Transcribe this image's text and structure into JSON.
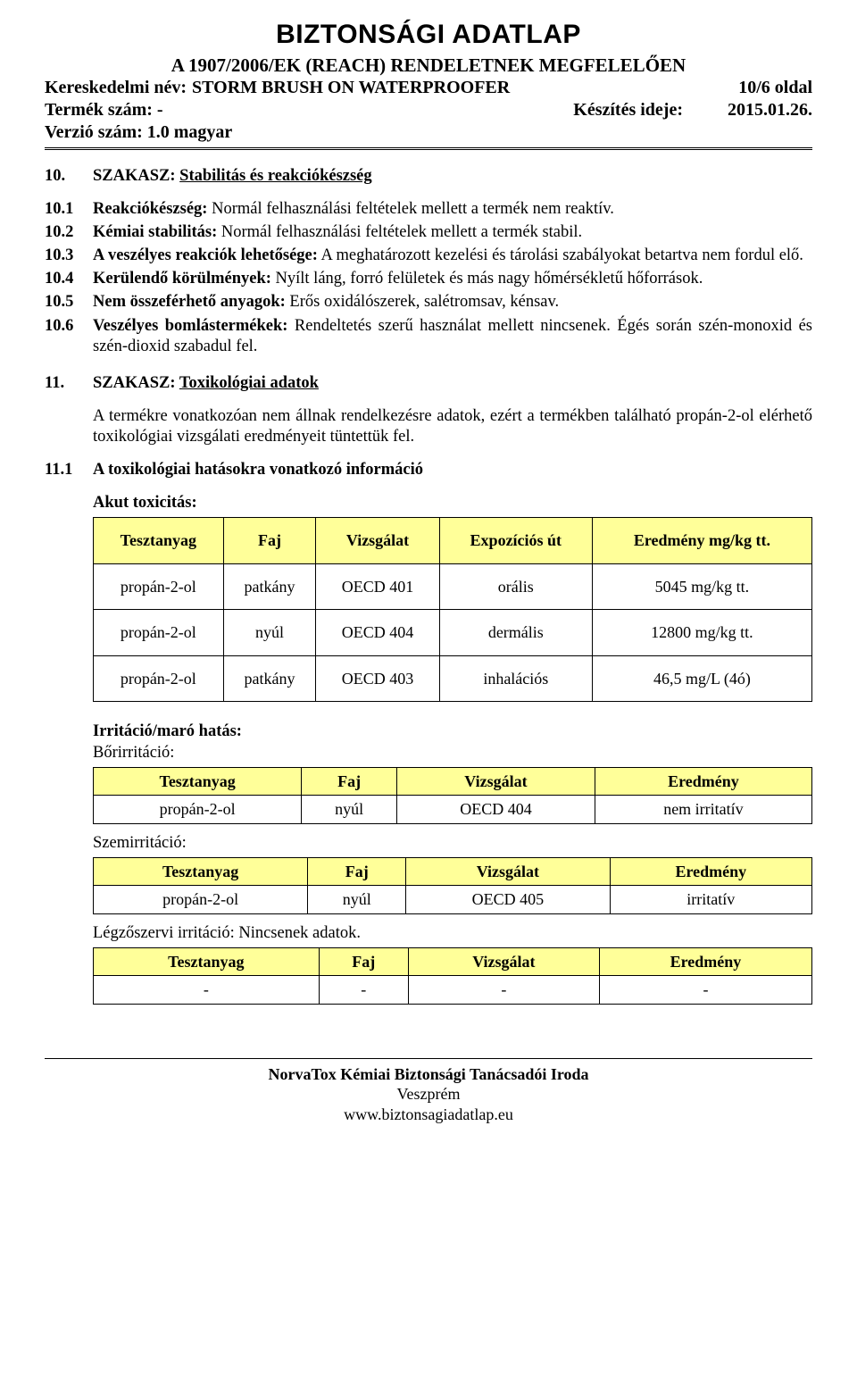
{
  "header": {
    "main_title": "BIZTONSÁGI ADATLAP",
    "subtitle": "A 1907/2006/EK (REACH) RENDELETNEK MEGFELELŐEN",
    "trade_label": "Kereskedelmi név:",
    "trade_value": "STORM BRUSH ON WATERPROOFER",
    "page_info": "10/6 oldal",
    "product_label": "Termék szám: -",
    "prep_label": "Készítés ideje:",
    "prep_value": "2015.01.26.",
    "version_label": "Verzió szám: 1.0 magyar"
  },
  "section10": {
    "num": "10.",
    "prefix": "SZAKASZ: ",
    "title": "Stabilitás és reakciókészség",
    "items": [
      {
        "n": "10.1",
        "label": "Reakciókészség:",
        "text": " Normál felhasználási feltételek mellett a termék nem reaktív."
      },
      {
        "n": "10.2",
        "label": "Kémiai stabilitás:",
        "text": " Normál felhasználási feltételek mellett a termék stabil."
      },
      {
        "n": "10.3",
        "label": "A veszélyes reakciók lehetősége:",
        "text": " A meghatározott kezelési és tárolási szabályokat betartva nem fordul elő."
      },
      {
        "n": "10.4",
        "label": "Kerülendő körülmények:",
        "text": " Nyílt láng, forró felületek és más nagy hőmérsékletű hőforrások."
      },
      {
        "n": "10.5",
        "label": "Nem összeférhető anyagok:",
        "text": " Erős oxidálószerek, salétromsav, kénsav."
      },
      {
        "n": "10.6",
        "label": "Veszélyes bomlástermékek:",
        "text": " Rendeltetés szerű használat mellett nincsenek. Égés során szén-monoxid és szén-dioxid szabadul fel."
      }
    ]
  },
  "section11": {
    "num": "11.",
    "prefix": "SZAKASZ: ",
    "title": "Toxikológiai adatok",
    "intro": "A termékre vonatkozóan nem állnak rendelkezésre adatok, ezért a termékben található propán-2-ol elérhető toxikológiai vizsgálati eredményeit tüntettük fel.",
    "sub11_1": {
      "n": "11.1",
      "text": "A toxikológiai hatásokra vonatkozó információ"
    },
    "acute_heading": "Akut toxicitás:",
    "acute_table": {
      "header_bg": "#ffff99",
      "columns": [
        "Tesztanyag",
        "Faj",
        "Vizsgálat",
        "Expozíciós út",
        "Eredmény mg/kg tt."
      ],
      "rows": [
        [
          "propán-2-ol",
          "patkány",
          "OECD 401",
          "orális",
          "5045 mg/kg tt."
        ],
        [
          "propán-2-ol",
          "nyúl",
          "OECD 404",
          "dermális",
          "12800 mg/kg tt."
        ],
        [
          "propán-2-ol",
          "patkány",
          "OECD 403",
          "inhalációs",
          "46,5 mg/L (4ó)"
        ]
      ]
    },
    "irr_heading": "Irritáció/maró hatás:",
    "skin_label": "Bőrirritáció:",
    "skin_table": {
      "header_bg": "#ffff99",
      "columns": [
        "Tesztanyag",
        "Faj",
        "Vizsgálat",
        "Eredmény"
      ],
      "rows": [
        [
          "propán-2-ol",
          "nyúl",
          "OECD 404",
          "nem irritatív"
        ]
      ]
    },
    "eye_label": "Szemirritáció:",
    "eye_table": {
      "header_bg": "#ffff99",
      "columns": [
        "Tesztanyag",
        "Faj",
        "Vizsgálat",
        "Eredmény"
      ],
      "rows": [
        [
          "propán-2-ol",
          "nyúl",
          "OECD 405",
          "irritatív"
        ]
      ]
    },
    "resp_label": "Légzőszervi irritáció: Nincsenek adatok.",
    "resp_table": {
      "header_bg": "#ffff99",
      "columns": [
        "Tesztanyag",
        "Faj",
        "Vizsgálat",
        "Eredmény"
      ],
      "rows": [
        [
          "-",
          "-",
          "-",
          "-"
        ]
      ]
    }
  },
  "footer": {
    "l1": "NorvaTox Kémiai Biztonsági Tanácsadói Iroda",
    "l2": "Veszprém",
    "l3": "www.biztonsagiadatlap.eu"
  }
}
